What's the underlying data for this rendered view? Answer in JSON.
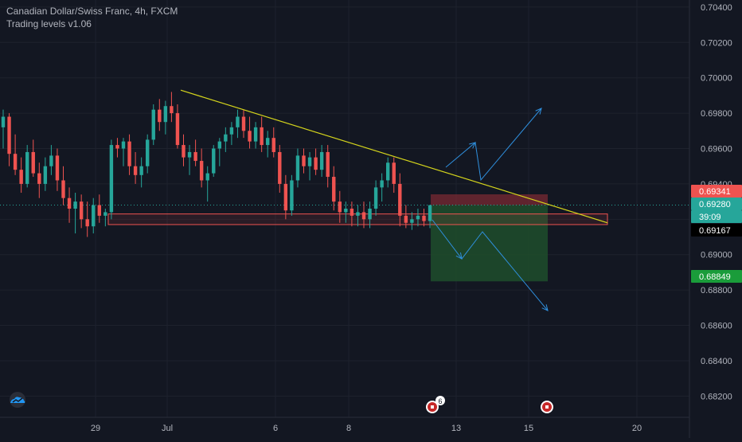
{
  "legend": {
    "symbol_line": "Canadian Dollar/Swiss Franc, 4h, FXCM",
    "indicator_line": "Trading levels v1.06"
  },
  "colors": {
    "background": "#131722",
    "up": "#26a69a",
    "down": "#ef5350",
    "trendline": "#d4d41c",
    "arrows": "#2f8fdd",
    "zone": "#ef5350",
    "stop_zone": "#7a2a33",
    "target_zone": "#1e4d2b",
    "current_price_line": "#26a69a"
  },
  "chart_data": {
    "type": "candlestick",
    "title": "Canadian Dollar/Swiss Franc, 4h, FXCM",
    "y_range": [
      0.6808,
      0.7044
    ],
    "y_ticks": [
      "0.70400",
      "0.70200",
      "0.70000",
      "0.69800",
      "0.69600",
      "0.69400",
      "0.69200",
      "0.69000",
      "0.68800",
      "0.68600",
      "0.68400",
      "0.68200"
    ],
    "x_ticks": [
      "29",
      "Jul",
      "6",
      "8",
      "13",
      "15",
      "20"
    ],
    "price_tags": [
      {
        "label": "0.69341",
        "color": "#ef5350"
      },
      {
        "label": "0.69280",
        "color": "#26a69a"
      },
      {
        "label": "39:09",
        "color": "#26a69a"
      },
      {
        "label": "0.69167",
        "color": "#000000"
      },
      {
        "label": "0.68849",
        "color": "#1a9c3a"
      }
    ],
    "event_badge_count": "6",
    "candles": [
      [
        0.6972,
        0.6982,
        0.696,
        0.6978
      ],
      [
        0.6978,
        0.698,
        0.695,
        0.6957
      ],
      [
        0.6957,
        0.6968,
        0.6945,
        0.6948
      ],
      [
        0.6948,
        0.6955,
        0.6935,
        0.694
      ],
      [
        0.694,
        0.6962,
        0.6938,
        0.6958
      ],
      [
        0.6958,
        0.6965,
        0.6944,
        0.6946
      ],
      [
        0.6946,
        0.6952,
        0.6932,
        0.694
      ],
      [
        0.694,
        0.6955,
        0.6936,
        0.695
      ],
      [
        0.695,
        0.6962,
        0.6945,
        0.6956
      ],
      [
        0.6956,
        0.696,
        0.6936,
        0.6942
      ],
      [
        0.6942,
        0.695,
        0.6928,
        0.6932
      ],
      [
        0.6932,
        0.6938,
        0.6918,
        0.6926
      ],
      [
        0.6926,
        0.6935,
        0.6912,
        0.693
      ],
      [
        0.693,
        0.6934,
        0.6915,
        0.692
      ],
      [
        0.692,
        0.693,
        0.691,
        0.6916
      ],
      [
        0.6916,
        0.6932,
        0.6912,
        0.6928
      ],
      [
        0.6928,
        0.6934,
        0.6918,
        0.6922
      ],
      [
        0.6922,
        0.6926,
        0.6916,
        0.6924
      ],
      [
        0.6924,
        0.6965,
        0.692,
        0.6962
      ],
      [
        0.6962,
        0.6966,
        0.6955,
        0.696
      ],
      [
        0.696,
        0.6966,
        0.695,
        0.6964
      ],
      [
        0.6964,
        0.6968,
        0.6945,
        0.695
      ],
      [
        0.695,
        0.6958,
        0.694,
        0.6945
      ],
      [
        0.6945,
        0.6955,
        0.6938,
        0.695
      ],
      [
        0.695,
        0.6968,
        0.6946,
        0.6965
      ],
      [
        0.6965,
        0.6985,
        0.6962,
        0.6982
      ],
      [
        0.6982,
        0.6988,
        0.697,
        0.6975
      ],
      [
        0.6975,
        0.6987,
        0.6968,
        0.6984
      ],
      [
        0.6984,
        0.6992,
        0.6975,
        0.698
      ],
      [
        0.698,
        0.6985,
        0.696,
        0.6962
      ],
      [
        0.6962,
        0.6968,
        0.695,
        0.6955
      ],
      [
        0.6955,
        0.6962,
        0.6945,
        0.6958
      ],
      [
        0.6958,
        0.6965,
        0.695,
        0.6953
      ],
      [
        0.6953,
        0.696,
        0.6938,
        0.6942
      ],
      [
        0.6942,
        0.695,
        0.693,
        0.6946
      ],
      [
        0.6946,
        0.6962,
        0.6944,
        0.696
      ],
      [
        0.696,
        0.6966,
        0.695,
        0.6964
      ],
      [
        0.6964,
        0.6972,
        0.6958,
        0.6968
      ],
      [
        0.6968,
        0.6975,
        0.6962,
        0.6972
      ],
      [
        0.6972,
        0.6982,
        0.6966,
        0.6978
      ],
      [
        0.6978,
        0.6982,
        0.6966,
        0.697
      ],
      [
        0.697,
        0.6978,
        0.696,
        0.6964
      ],
      [
        0.6964,
        0.6975,
        0.696,
        0.6972
      ],
      [
        0.6972,
        0.6978,
        0.6958,
        0.6962
      ],
      [
        0.6962,
        0.697,
        0.6955,
        0.6966
      ],
      [
        0.6966,
        0.6972,
        0.6955,
        0.6958
      ],
      [
        0.6958,
        0.6962,
        0.6935,
        0.694
      ],
      [
        0.694,
        0.6945,
        0.692,
        0.6925
      ],
      [
        0.6925,
        0.6945,
        0.6922,
        0.6942
      ],
      [
        0.6942,
        0.696,
        0.6938,
        0.6956
      ],
      [
        0.6956,
        0.696,
        0.6946,
        0.695
      ],
      [
        0.695,
        0.6958,
        0.6942,
        0.6955
      ],
      [
        0.6955,
        0.696,
        0.6945,
        0.6948
      ],
      [
        0.6948,
        0.6962,
        0.6944,
        0.6958
      ],
      [
        0.6958,
        0.6962,
        0.6938,
        0.6944
      ],
      [
        0.6944,
        0.695,
        0.6925,
        0.693
      ],
      [
        0.693,
        0.6936,
        0.6918,
        0.6924
      ],
      [
        0.6924,
        0.693,
        0.6918,
        0.6926
      ],
      [
        0.6926,
        0.693,
        0.6916,
        0.6922
      ],
      [
        0.6922,
        0.6928,
        0.6916,
        0.6924
      ],
      [
        0.6924,
        0.693,
        0.6915,
        0.692
      ],
      [
        0.692,
        0.693,
        0.6915,
        0.6926
      ],
      [
        0.6926,
        0.6942,
        0.6922,
        0.6938
      ],
      [
        0.6938,
        0.6946,
        0.693,
        0.6942
      ],
      [
        0.6942,
        0.6955,
        0.6938,
        0.6952
      ],
      [
        0.6952,
        0.6955,
        0.6935,
        0.694
      ],
      [
        0.694,
        0.6946,
        0.6916,
        0.6922
      ],
      [
        0.6922,
        0.6928,
        0.6915,
        0.6918
      ],
      [
        0.6918,
        0.6924,
        0.6914,
        0.692
      ],
      [
        0.692,
        0.6926,
        0.6916,
        0.6922
      ],
      [
        0.6922,
        0.6926,
        0.6916,
        0.6919
      ],
      [
        0.6919,
        0.6928,
        0.6915,
        0.6928
      ]
    ],
    "trendline": {
      "points": [
        [
          0,
          0.6993
        ],
        [
          1,
          0.6918
        ]
      ],
      "label": ""
    },
    "support_zone": [
      0.6917,
      0.6923
    ],
    "stop_zone": [
      0.6928,
      0.69341
    ],
    "target_zone": [
      0.68849,
      0.6928
    ]
  }
}
